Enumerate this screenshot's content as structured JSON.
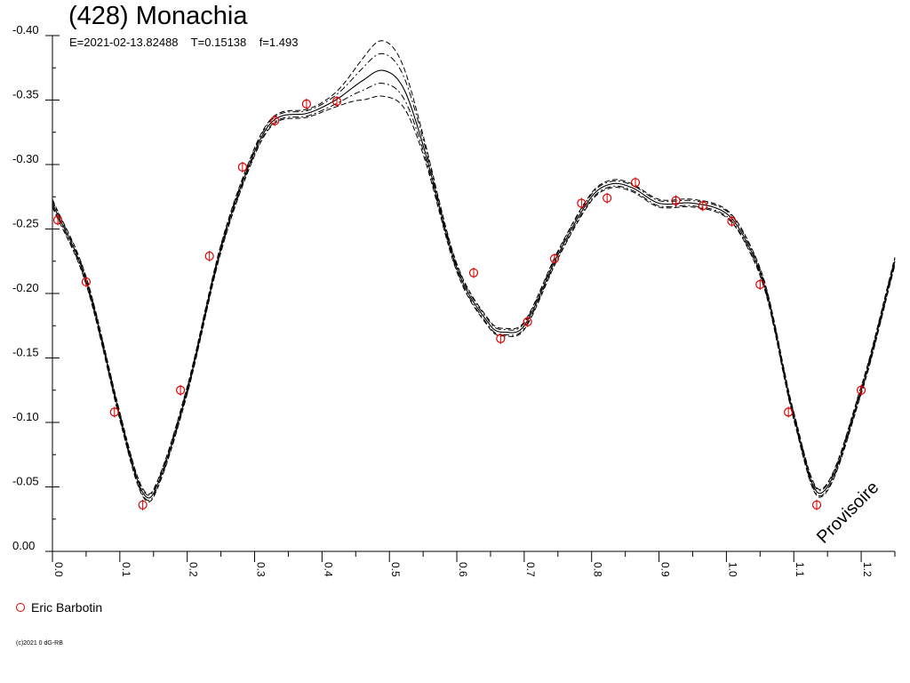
{
  "chart_data": {
    "type": "scatter",
    "title": "(428) Monachia",
    "subtitle": "E=2021-02-13.82488    T=0.15138    f=1.493",
    "watermark": "Provisoire",
    "copyright": "(c)2021 0 dG-RB",
    "xlim": [
      0.0,
      1.25
    ],
    "ylim": [
      0.0,
      -0.4
    ],
    "x_ticks": [
      "0.0",
      "0.1",
      "0.2",
      "0.3",
      "0.4",
      "0.5",
      "0.6",
      "0.7",
      "0.8",
      "0.9",
      "1.0",
      "1.1",
      "1.2"
    ],
    "y_ticks": [
      "0.00",
      "-0.05",
      "-0.10",
      "-0.15",
      "-0.20",
      "-0.25",
      "-0.30",
      "-0.35",
      "-0.40"
    ],
    "legend": {
      "position": "bottom-left"
    },
    "series": [
      {
        "name": "Eric Barbotin",
        "color": "#dd0000",
        "marker": "circle-errorbar",
        "x": [
          0.008,
          0.05,
          0.092,
          0.134,
          0.19,
          0.233,
          0.282,
          0.33,
          0.377,
          0.422,
          0.625,
          0.665,
          0.705,
          0.745,
          0.785,
          0.823,
          0.865,
          0.925,
          0.965,
          1.008,
          1.05,
          1.092,
          1.134,
          1.2
        ],
        "y": [
          -0.257,
          -0.209,
          -0.108,
          -0.036,
          -0.125,
          -0.229,
          -0.298,
          -0.334,
          -0.347,
          -0.349,
          -0.216,
          -0.165,
          -0.178,
          -0.227,
          -0.27,
          -0.274,
          -0.286,
          -0.272,
          -0.268,
          -0.256,
          -0.207,
          -0.108,
          -0.036,
          -0.125
        ]
      }
    ],
    "fit_curve": {
      "name": "",
      "style": "solid",
      "x": [
        0.0,
        0.05,
        0.1,
        0.13,
        0.15,
        0.2,
        0.25,
        0.3,
        0.33,
        0.38,
        0.42,
        0.46,
        0.49,
        0.52,
        0.55,
        0.6,
        0.65,
        0.67,
        0.7,
        0.75,
        0.8,
        0.83,
        0.86,
        0.9,
        0.95,
        1.0,
        1.03,
        1.06,
        1.1,
        1.14,
        1.2,
        1.25
      ],
      "y": [
        -0.27,
        -0.21,
        -0.105,
        -0.05,
        -0.045,
        -0.125,
        -0.235,
        -0.31,
        -0.335,
        -0.34,
        -0.35,
        -0.365,
        -0.373,
        -0.36,
        -0.315,
        -0.22,
        -0.175,
        -0.17,
        -0.175,
        -0.23,
        -0.275,
        -0.285,
        -0.282,
        -0.27,
        -0.27,
        -0.262,
        -0.24,
        -0.2,
        -0.105,
        -0.045,
        -0.125,
        -0.225
      ],
      "bands": [
        {
          "style": "dashed",
          "offset": 0.003,
          "peak_offset": 0.023
        },
        {
          "style": "dashdot",
          "offset": 0.002,
          "peak_offset": 0.013
        },
        {
          "style": "dashdot",
          "offset": -0.002,
          "peak_offset": -0.01
        },
        {
          "style": "dashed",
          "offset": -0.003,
          "peak_offset": -0.02
        }
      ]
    }
  }
}
